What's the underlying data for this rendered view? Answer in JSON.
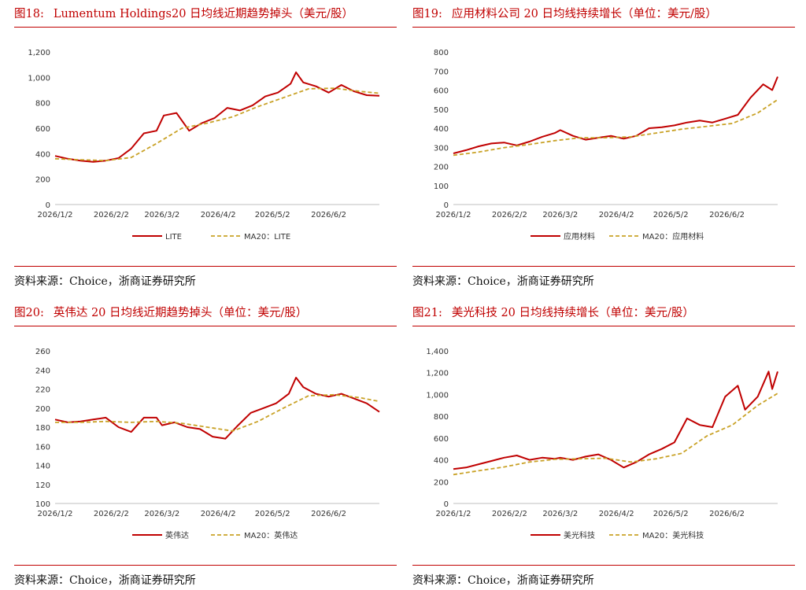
{
  "panels": [
    {
      "figure_no": "图18:",
      "title": "Lumentum Holdings20 日均线近期趋势掉头（美元/股）",
      "source": "资料来源：Choice，浙商证券研究所"
    },
    {
      "figure_no": "图19:",
      "title": "应用材料公司 20 日均线持续增长（单位：美元/股）",
      "source": "资料来源：Choice，浙商证券研究所"
    },
    {
      "figure_no": "图20:",
      "title": "英伟达 20 日均线近期趋势掉头（单位：美元/股）",
      "source": "资料来源：Choice，浙商证券研究所"
    },
    {
      "figure_no": "图21:",
      "title": "美光科技 20 日均线持续增长（单位：美元/股）",
      "source": "资料来源：Choice，浙商证券研究所"
    }
  ],
  "colors": {
    "price": "#c00000",
    "ma20": "#c9a227",
    "accent": "#c00000"
  },
  "chart_data": [
    {
      "type": "line",
      "ylim": [
        0,
        1200
      ],
      "yticks": [
        "0",
        "200",
        "400",
        "600",
        "800",
        "1,000",
        "1,200"
      ],
      "ytick_values": [
        0,
        200,
        400,
        600,
        800,
        1000,
        1200
      ],
      "x_dates": [
        "2026/1/2",
        "2026/2/2",
        "2026/3/2",
        "2026/4/2",
        "2026/5/2",
        "2026/6/2"
      ],
      "x_end": "2026/6/30",
      "series": [
        {
          "name": "LITE",
          "points": [
            [
              "2026/1/2",
              382
            ],
            [
              "2026/1/9",
              360
            ],
            [
              "2026/1/16",
              345
            ],
            [
              "2026/1/23",
              335
            ],
            [
              "2026/1/30",
              345
            ],
            [
              "2026/2/6",
              365
            ],
            [
              "2026/2/13",
              440
            ],
            [
              "2026/2/20",
              560
            ],
            [
              "2026/2/27",
              580
            ],
            [
              "2026/3/3",
              700
            ],
            [
              "2026/3/10",
              720
            ],
            [
              "2026/3/17",
              580
            ],
            [
              "2026/3/24",
              640
            ],
            [
              "2026/3/31",
              680
            ],
            [
              "2026/4/7",
              760
            ],
            [
              "2026/4/14",
              740
            ],
            [
              "2026/4/21",
              780
            ],
            [
              "2026/4/28",
              850
            ],
            [
              "2026/5/5",
              880
            ],
            [
              "2026/5/12",
              950
            ],
            [
              "2026/5/15",
              1040
            ],
            [
              "2026/5/19",
              960
            ],
            [
              "2026/5/26",
              930
            ],
            [
              "2026/6/2",
              880
            ],
            [
              "2026/6/9",
              940
            ],
            [
              "2026/6/16",
              890
            ],
            [
              "2026/6/23",
              860
            ],
            [
              "2026/6/30",
              855
            ]
          ]
        },
        {
          "name": "MA20：LITE",
          "points": [
            [
              "2026/1/2",
              360
            ],
            [
              "2026/1/16",
              352
            ],
            [
              "2026/1/30",
              345
            ],
            [
              "2026/2/13",
              370
            ],
            [
              "2026/2/27",
              480
            ],
            [
              "2026/3/13",
              600
            ],
            [
              "2026/3/27",
              640
            ],
            [
              "2026/4/10",
              690
            ],
            [
              "2026/4/24",
              770
            ],
            [
              "2026/5/8",
              840
            ],
            [
              "2026/5/22",
              910
            ],
            [
              "2026/6/5",
              915
            ],
            [
              "2026/6/19",
              890
            ],
            [
              "2026/6/30",
              875
            ]
          ]
        }
      ]
    },
    {
      "type": "line",
      "ylim": [
        0,
        800
      ],
      "yticks": [
        "0",
        "100",
        "200",
        "300",
        "400",
        "500",
        "600",
        "700",
        "800"
      ],
      "ytick_values": [
        0,
        100,
        200,
        300,
        400,
        500,
        600,
        700,
        800
      ],
      "x_dates": [
        "2026/1/2",
        "2026/2/2",
        "2026/3/2",
        "2026/4/2",
        "2026/5/2",
        "2026/6/2"
      ],
      "x_end": "2026/6/30",
      "series": [
        {
          "name": "应用材料",
          "points": [
            [
              "2026/1/2",
              268
            ],
            [
              "2026/1/9",
              285
            ],
            [
              "2026/1/16",
              305
            ],
            [
              "2026/1/23",
              320
            ],
            [
              "2026/1/30",
              325
            ],
            [
              "2026/2/6",
              310
            ],
            [
              "2026/2/13",
              330
            ],
            [
              "2026/2/20",
              355
            ],
            [
              "2026/2/27",
              375
            ],
            [
              "2026/3/2",
              390
            ],
            [
              "2026/3/9",
              360
            ],
            [
              "2026/3/16",
              340
            ],
            [
              "2026/3/23",
              350
            ],
            [
              "2026/3/30",
              360
            ],
            [
              "2026/4/6",
              345
            ],
            [
              "2026/4/13",
              360
            ],
            [
              "2026/4/20",
              400
            ],
            [
              "2026/4/27",
              405
            ],
            [
              "2026/5/4",
              415
            ],
            [
              "2026/5/11",
              430
            ],
            [
              "2026/5/18",
              440
            ],
            [
              "2026/5/25",
              430
            ],
            [
              "2026/6/1",
              450
            ],
            [
              "2026/6/8",
              470
            ],
            [
              "2026/6/15",
              560
            ],
            [
              "2026/6/22",
              630
            ],
            [
              "2026/6/27",
              600
            ],
            [
              "2026/6/30",
              670
            ]
          ]
        },
        {
          "name": "MA20：应用材料",
          "points": [
            [
              "2026/1/2",
              258
            ],
            [
              "2026/1/16",
              275
            ],
            [
              "2026/1/30",
              298
            ],
            [
              "2026/2/13",
              315
            ],
            [
              "2026/2/27",
              335
            ],
            [
              "2026/3/13",
              350
            ],
            [
              "2026/3/27",
              350
            ],
            [
              "2026/4/10",
              355
            ],
            [
              "2026/4/24",
              375
            ],
            [
              "2026/5/8",
              395
            ],
            [
              "2026/5/22",
              410
            ],
            [
              "2026/6/5",
              425
            ],
            [
              "2026/6/19",
              480
            ],
            [
              "2026/6/30",
              550
            ]
          ]
        }
      ]
    },
    {
      "type": "line",
      "ylim": [
        100,
        260
      ],
      "yticks": [
        "100",
        "120",
        "140",
        "160",
        "180",
        "200",
        "220",
        "240",
        "260"
      ],
      "ytick_values": [
        100,
        120,
        140,
        160,
        180,
        200,
        220,
        240,
        260
      ],
      "x_dates": [
        "2026/1/2",
        "2026/2/2",
        "2026/3/2",
        "2026/4/2",
        "2026/5/2",
        "2026/6/2"
      ],
      "x_end": "2026/6/30",
      "series": [
        {
          "name": "英伟达",
          "points": [
            [
              "2026/1/2",
              188
            ],
            [
              "2026/1/9",
              185
            ],
            [
              "2026/1/16",
              186
            ],
            [
              "2026/1/23",
              188
            ],
            [
              "2026/1/30",
              190
            ],
            [
              "2026/2/6",
              180
            ],
            [
              "2026/2/13",
              175
            ],
            [
              "2026/2/20",
              190
            ],
            [
              "2026/2/27",
              190
            ],
            [
              "2026/3/2",
              182
            ],
            [
              "2026/3/9",
              185
            ],
            [
              "2026/3/16",
              180
            ],
            [
              "2026/3/23",
              178
            ],
            [
              "2026/3/30",
              170
            ],
            [
              "2026/4/6",
              168
            ],
            [
              "2026/4/13",
              182
            ],
            [
              "2026/4/20",
              195
            ],
            [
              "2026/4/27",
              200
            ],
            [
              "2026/5/4",
              205
            ],
            [
              "2026/5/11",
              215
            ],
            [
              "2026/5/15",
              232
            ],
            [
              "2026/5/19",
              222
            ],
            [
              "2026/5/26",
              215
            ],
            [
              "2026/6/2",
              212
            ],
            [
              "2026/6/9",
              215
            ],
            [
              "2026/6/16",
              210
            ],
            [
              "2026/6/23",
              205
            ],
            [
              "2026/6/30",
              196
            ]
          ]
        },
        {
          "name": "MA20：英伟达",
          "points": [
            [
              "2026/1/2",
              185
            ],
            [
              "2026/1/16",
              185
            ],
            [
              "2026/1/30",
              186
            ],
            [
              "2026/2/13",
              185
            ],
            [
              "2026/2/27",
              186
            ],
            [
              "2026/3/13",
              184
            ],
            [
              "2026/3/27",
              180
            ],
            [
              "2026/4/10",
              176
            ],
            [
              "2026/4/24",
              186
            ],
            [
              "2026/5/8",
              200
            ],
            [
              "2026/5/22",
              213
            ],
            [
              "2026/6/5",
              214
            ],
            [
              "2026/6/19",
              211
            ],
            [
              "2026/6/30",
              207
            ]
          ]
        }
      ]
    },
    {
      "type": "line",
      "ylim": [
        0,
        1400
      ],
      "yticks": [
        "0",
        "200",
        "400",
        "600",
        "800",
        "1,000",
        "1,200",
        "1,400"
      ],
      "ytick_values": [
        0,
        200,
        400,
        600,
        800,
        1000,
        1200,
        1400
      ],
      "x_dates": [
        "2026/1/2",
        "2026/2/2",
        "2026/3/2",
        "2026/4/2",
        "2026/5/2",
        "2026/6/2"
      ],
      "x_end": "2026/6/30",
      "series": [
        {
          "name": "美光科技",
          "points": [
            [
              "2026/1/2",
              315
            ],
            [
              "2026/1/9",
              330
            ],
            [
              "2026/1/16",
              360
            ],
            [
              "2026/1/23",
              390
            ],
            [
              "2026/1/30",
              420
            ],
            [
              "2026/2/6",
              440
            ],
            [
              "2026/2/13",
              400
            ],
            [
              "2026/2/20",
              420
            ],
            [
              "2026/2/27",
              410
            ],
            [
              "2026/3/2",
              420
            ],
            [
              "2026/3/9",
              400
            ],
            [
              "2026/3/16",
              430
            ],
            [
              "2026/3/23",
              450
            ],
            [
              "2026/3/30",
              400
            ],
            [
              "2026/4/6",
              330
            ],
            [
              "2026/4/13",
              380
            ],
            [
              "2026/4/20",
              450
            ],
            [
              "2026/4/27",
              500
            ],
            [
              "2026/5/4",
              560
            ],
            [
              "2026/5/11",
              780
            ],
            [
              "2026/5/18",
              720
            ],
            [
              "2026/5/25",
              700
            ],
            [
              "2026/6/1",
              980
            ],
            [
              "2026/6/8",
              1080
            ],
            [
              "2026/6/12",
              860
            ],
            [
              "2026/6/19",
              980
            ],
            [
              "2026/6/25",
              1210
            ],
            [
              "2026/6/27",
              1050
            ],
            [
              "2026/6/30",
              1210
            ]
          ]
        },
        {
          "name": "MA20：美光科技",
          "points": [
            [
              "2026/1/2",
              265
            ],
            [
              "2026/1/16",
              300
            ],
            [
              "2026/1/30",
              335
            ],
            [
              "2026/2/13",
              380
            ],
            [
              "2026/2/27",
              405
            ],
            [
              "2026/3/13",
              410
            ],
            [
              "2026/3/27",
              415
            ],
            [
              "2026/4/10",
              380
            ],
            [
              "2026/4/24",
              410
            ],
            [
              "2026/5/8",
              460
            ],
            [
              "2026/5/22",
              620
            ],
            [
              "2026/6/5",
              720
            ],
            [
              "2026/6/19",
              900
            ],
            [
              "2026/6/30",
              1010
            ]
          ]
        }
      ]
    }
  ]
}
